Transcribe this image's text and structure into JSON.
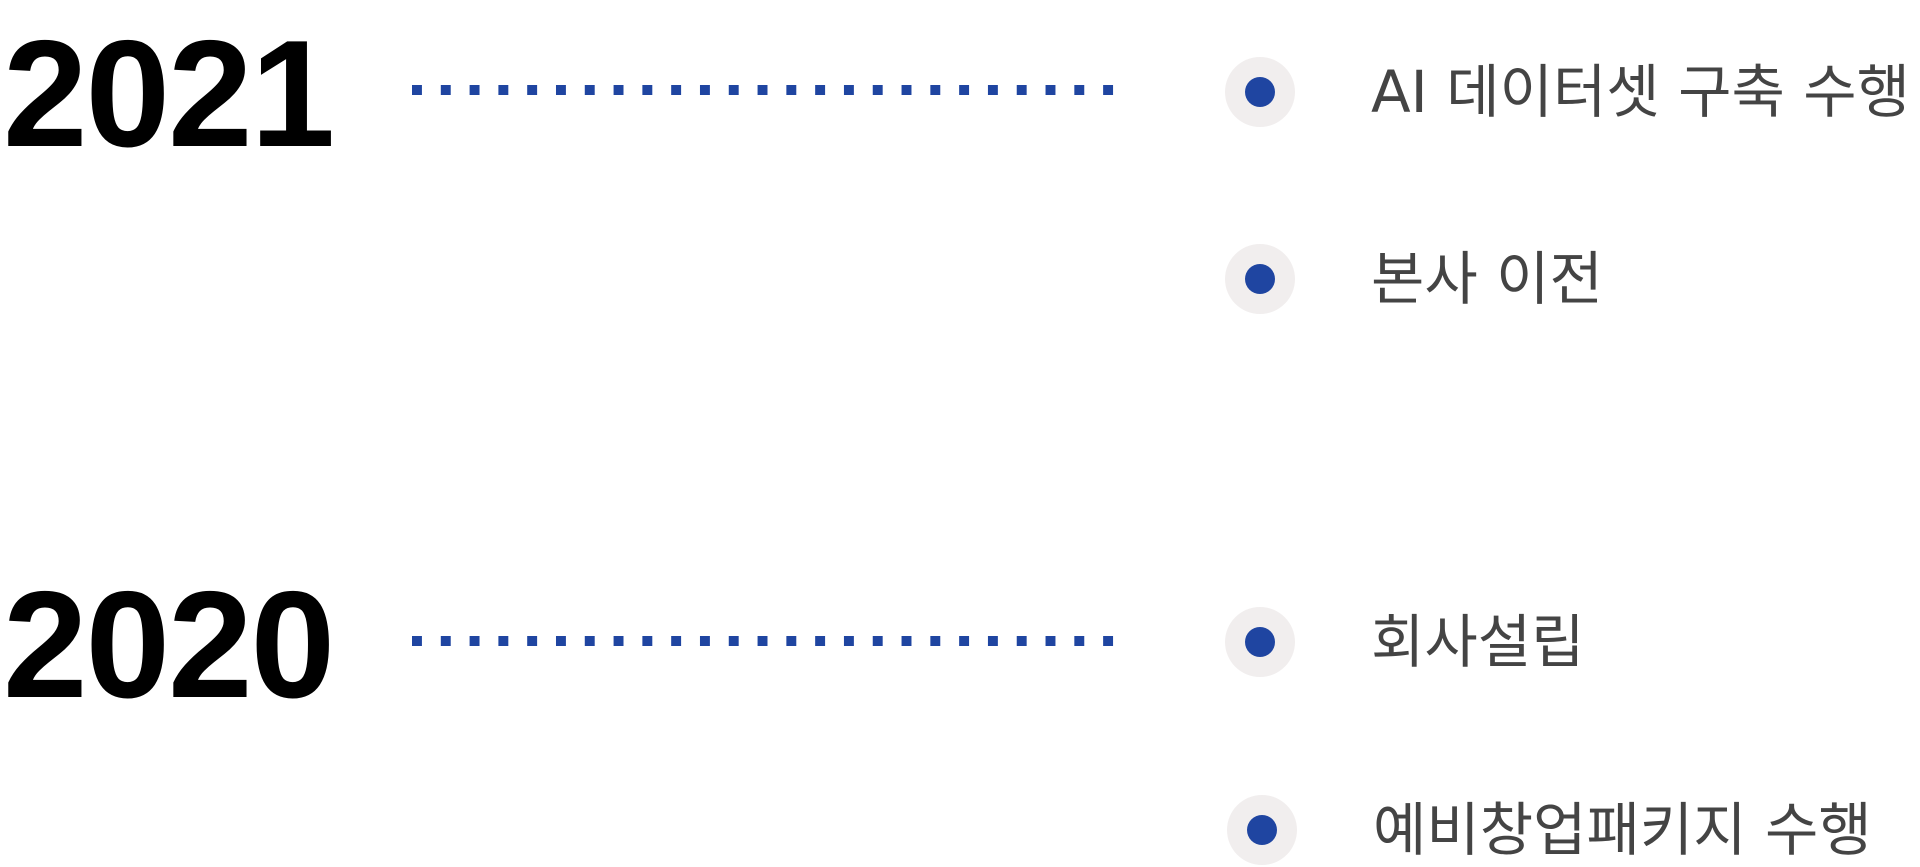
{
  "timeline": {
    "groups": [
      {
        "year": "2021",
        "events": [
          {
            "label": "AI 데이터셋 구축 수행"
          },
          {
            "label": "본사 이전"
          }
        ]
      },
      {
        "year": "2020",
        "events": [
          {
            "label": "회사설립"
          },
          {
            "label": "예비창업패키지 수행"
          }
        ]
      }
    ]
  },
  "colors": {
    "accent": "#1f45a1",
    "marker_bg": "#f1eeee",
    "year_text": "#000000",
    "event_text": "#444444",
    "background": "#ffffff"
  }
}
